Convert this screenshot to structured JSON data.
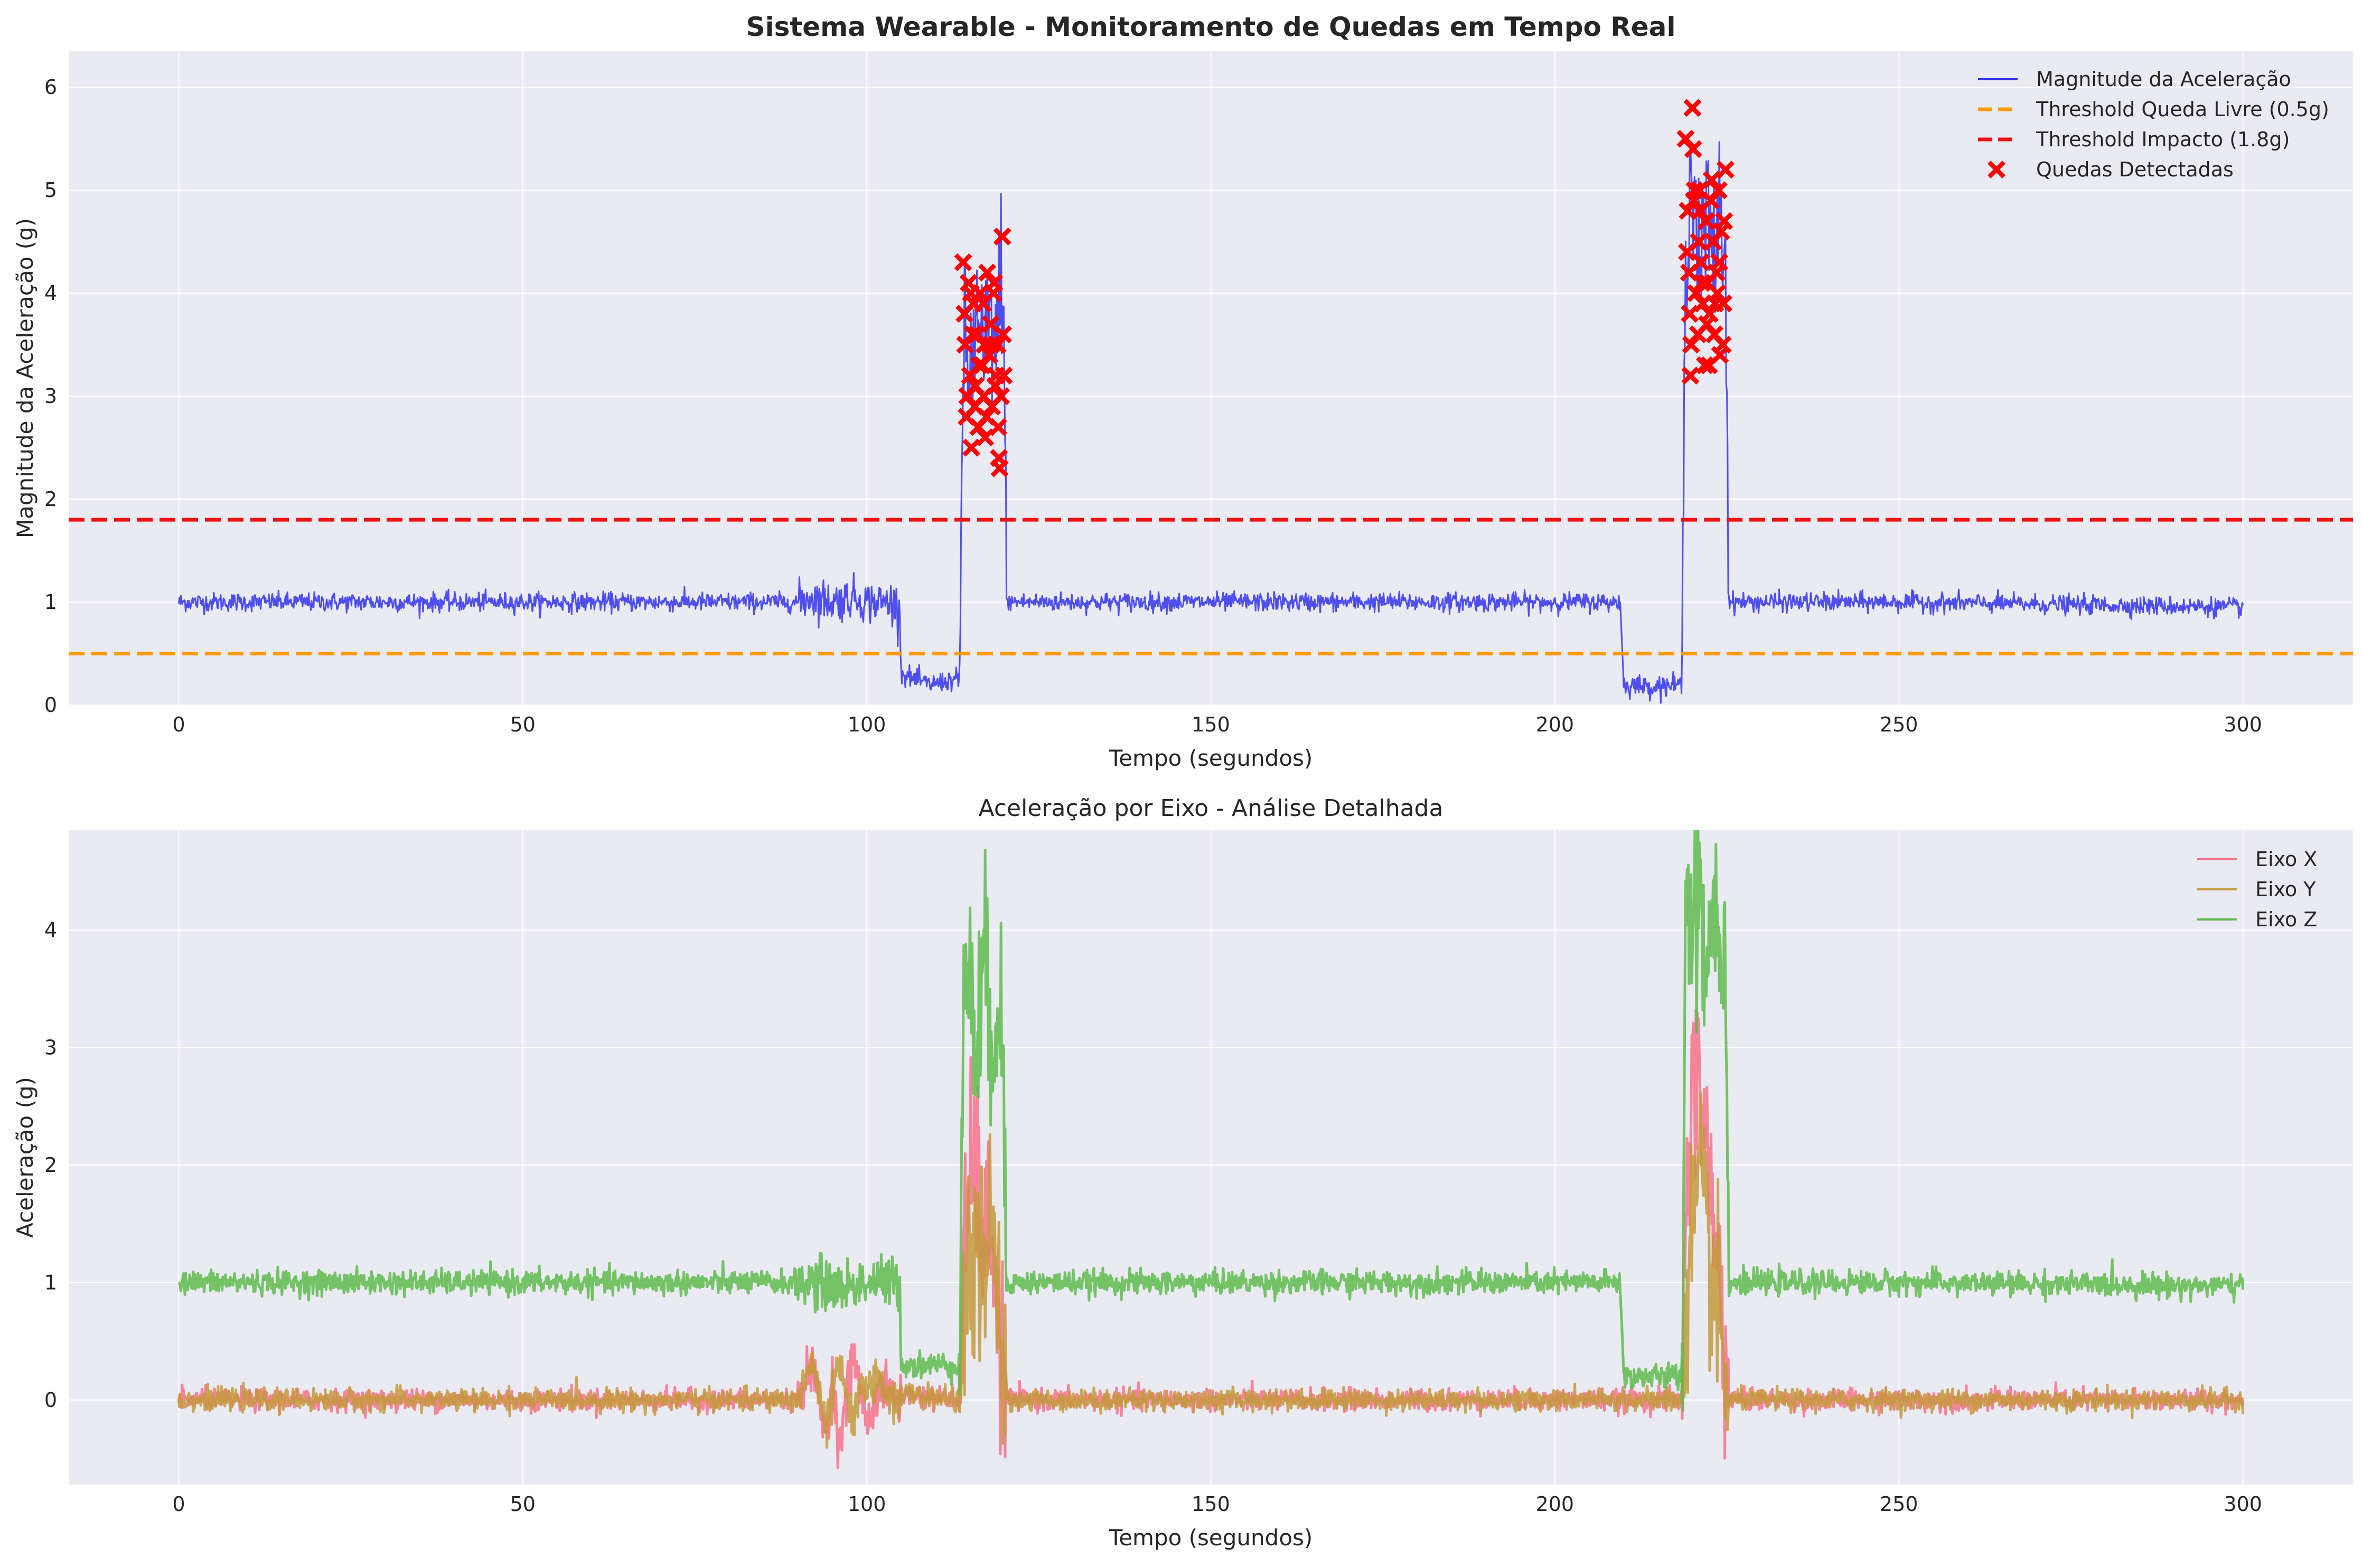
{
  "chart_data": [
    {
      "type": "line",
      "title": "Sistema Wearable - Monitoramento de Quedas em Tempo Real",
      "xlabel": "Tempo (segundos)",
      "ylabel": "Magnitude da Aceleração (g)",
      "xlim": [
        -16,
        316
      ],
      "ylim": [
        0,
        6.35
      ],
      "xticks": [
        0,
        50,
        100,
        150,
        200,
        250,
        300
      ],
      "yticks": [
        0,
        1,
        2,
        3,
        4,
        5,
        6
      ],
      "grid": true,
      "legend": "top-right",
      "series": [
        {
          "name": "Magnitude da Aceleração",
          "color": "#3333ee",
          "kind": "line",
          "x": [
            0,
            90,
            92,
            95,
            98,
            100,
            104,
            104.8,
            105,
            109,
            113,
            113.5,
            114,
            115,
            116,
            117,
            118,
            119,
            119.5,
            120,
            120.3,
            150,
            200,
            209.5,
            210,
            214,
            218.5,
            219,
            220,
            221,
            222,
            223,
            224,
            224.8,
            225,
            225.3,
            250,
            300
          ],
          "y": [
            1.0,
            1.0,
            1.05,
            1.0,
            1.05,
            1.0,
            1.0,
            0.95,
            0.3,
            0.2,
            0.25,
            0.2,
            3.5,
            3.2,
            3.7,
            3.3,
            3.8,
            3.4,
            4.5,
            3.3,
            1.0,
            1.0,
            1.0,
            1.0,
            0.2,
            0.18,
            0.2,
            4.6,
            5.3,
            4.1,
            4.8,
            4.3,
            4.9,
            4.2,
            3.4,
            1.0,
            1.0,
            0.95
          ]
        },
        {
          "name": "Threshold Queda Livre (0.5g)",
          "color": "#ff9900",
          "kind": "hline",
          "y": 0.5
        },
        {
          "name": "Threshold Impacto (1.8g)",
          "color": "#ee1111",
          "kind": "hline",
          "y": 1.8
        },
        {
          "name": "Quedas Detectadas",
          "color": "#ff0000",
          "kind": "scatter",
          "x": [
            114,
            114.3,
            114.5,
            114.8,
            115,
            115.2,
            115.5,
            115.8,
            116,
            116.2,
            116.5,
            116.8,
            117,
            117.2,
            117.5,
            117.8,
            118,
            118.2,
            118.5,
            118.8,
            119,
            119.2,
            119.5,
            119.8,
            114.2,
            114.6,
            115.1,
            115.7,
            116.3,
            116.9,
            117.4,
            118.1,
            118.7,
            119.3,
            119.7,
            115.4,
            117.1,
            118.4,
            119.1,
            119.9,
            219,
            219.3,
            219.5,
            219.8,
            220,
            220.2,
            220.5,
            220.8,
            221,
            221.2,
            221.5,
            221.8,
            222,
            222.2,
            222.5,
            222.8,
            223,
            223.2,
            223.5,
            223.8,
            224,
            224.2,
            224.5,
            224.8,
            219.2,
            219.7,
            220.3,
            220.9,
            221.4,
            222.1,
            222.7,
            223.3,
            223.9,
            224.4,
            220.1,
            221.1,
            222.4,
            223.6,
            224.6,
            219.6
          ],
          "y": [
            4.3,
            3.5,
            2.8,
            4.1,
            3.2,
            2.5,
            3.9,
            3.1,
            3.6,
            2.7,
            4.0,
            3.3,
            3.0,
            2.6,
            4.2,
            3.4,
            3.7,
            2.9,
            4.1,
            3.2,
            3.5,
            2.4,
            3.0,
            3.6,
            3.8,
            3.0,
            4.0,
            2.9,
            3.3,
            3.9,
            2.8,
            3.5,
            3.1,
            2.3,
            4.55,
            3.6,
            3.5,
            4.0,
            2.7,
            3.2,
            5.5,
            4.8,
            4.2,
            3.5,
            5.8,
            4.9,
            4.0,
            3.6,
            5.0,
            4.3,
            3.9,
            3.3,
            4.7,
            4.1,
            3.8,
            5.1,
            4.5,
            3.6,
            4.2,
            5.0,
            3.4,
            4.6,
            3.9,
            5.2,
            4.4,
            3.2,
            5.0,
            4.5,
            4.1,
            3.7,
            4.9,
            3.9,
            4.3,
            3.5,
            5.4,
            4.8,
            3.3,
            4.0,
            4.7,
            3.8
          ]
        }
      ]
    },
    {
      "type": "line",
      "title": "Aceleração por Eixo - Análise Detalhada",
      "xlabel": "Tempo (segundos)",
      "ylabel": "Aceleração (g)",
      "xlim": [
        -16,
        316
      ],
      "ylim": [
        -0.72,
        4.85
      ],
      "xticks": [
        0,
        50,
        100,
        150,
        200,
        250,
        300
      ],
      "yticks": [
        0,
        1,
        2,
        3,
        4
      ],
      "grid": true,
      "legend": "top-right",
      "series": [
        {
          "name": "Eixo X",
          "color": "#f77189",
          "kind": "line",
          "x": [
            0,
            90,
            92,
            94,
            95,
            96,
            98,
            100,
            102,
            104.8,
            105,
            113.5,
            114,
            115,
            116,
            117,
            118,
            119,
            119.8,
            120.3,
            150,
            209.5,
            210,
            218.5,
            219,
            220,
            221,
            222,
            223,
            224,
            224.8,
            225.3,
            250,
            300
          ],
          "y": [
            0.0,
            0.0,
            0.3,
            -0.3,
            0.2,
            -0.4,
            0.4,
            -0.2,
            0.1,
            0.0,
            0.05,
            0.0,
            1.0,
            1.9,
            2.0,
            1.2,
            1.6,
            0.6,
            0.3,
            0.0,
            0.0,
            0.0,
            0.0,
            0.0,
            1.8,
            2.6,
            2.7,
            2.3,
            1.4,
            1.0,
            0.4,
            0.0,
            0.0,
            0.0
          ]
        },
        {
          "name": "Eixo Y",
          "color": "#c39a3c",
          "kind": "line",
          "x": [
            0,
            90,
            92,
            94,
            96,
            98,
            100,
            104.8,
            105,
            113.5,
            114,
            115,
            116,
            117,
            118,
            119,
            119.8,
            120.3,
            150,
            209.5,
            210,
            218.5,
            219,
            220,
            221,
            222,
            223,
            224,
            224.8,
            225.3,
            250,
            300
          ],
          "y": [
            0.0,
            0.0,
            0.35,
            -0.25,
            0.3,
            -0.2,
            0.2,
            0.0,
            0.05,
            0.0,
            0.7,
            1.1,
            1.3,
            1.0,
            1.4,
            0.8,
            0.3,
            0.0,
            0.0,
            0.0,
            0.0,
            0.0,
            0.8,
            1.5,
            1.8,
            1.4,
            1.0,
            0.6,
            0.2,
            0.0,
            0.0,
            0.0
          ]
        },
        {
          "name": "Eixo Z",
          "color": "#5fbb4e",
          "kind": "line",
          "x": [
            0,
            90,
            92,
            96,
            100,
            104.8,
            105,
            113.5,
            114,
            114.4,
            115,
            116,
            117,
            118,
            119,
            119.8,
            120.3,
            150,
            200,
            209.5,
            210,
            218.5,
            219,
            220,
            221,
            222,
            223,
            224,
            224.8,
            225.3,
            250,
            300
          ],
          "y": [
            1.0,
            1.0,
            1.0,
            0.95,
            1.0,
            1.0,
            0.3,
            0.3,
            3.0,
            3.9,
            3.4,
            3.0,
            3.6,
            3.2,
            3.4,
            2.9,
            1.0,
            1.0,
            1.0,
            1.0,
            0.2,
            0.2,
            4.4,
            4.0,
            4.6,
            3.6,
            4.3,
            4.1,
            3.6,
            1.0,
            1.0,
            0.97
          ]
        }
      ]
    }
  ]
}
